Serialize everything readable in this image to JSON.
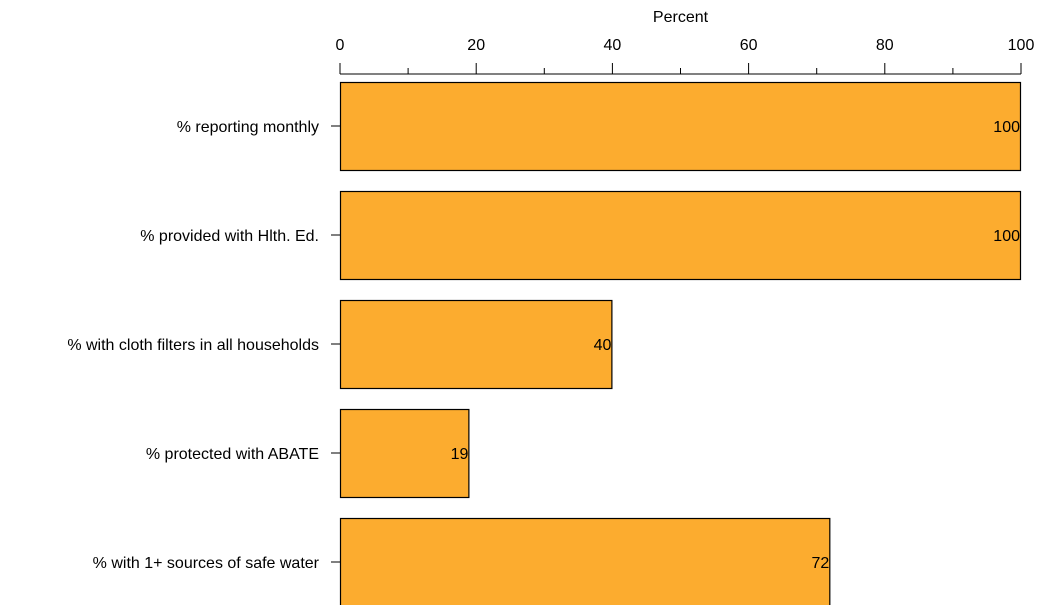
{
  "chart_data": {
    "type": "bar",
    "orientation": "horizontal",
    "categories": [
      "% reporting monthly",
      "% provided with Hlth. Ed.",
      "% with cloth filters in all households",
      "% protected with ABATE",
      "% with 1+ sources of safe water"
    ],
    "values": [
      100,
      100,
      40,
      19,
      72
    ],
    "data_labels": [
      "100",
      "100",
      "40",
      "19",
      "72"
    ],
    "title": "",
    "xlabel": "Percent",
    "ylabel": "",
    "xlim": [
      0,
      100
    ],
    "x_ticks": [
      0,
      20,
      40,
      60,
      80,
      100
    ],
    "x_tick_labels": [
      "0",
      "20",
      "40",
      "60",
      "80",
      "100"
    ],
    "x_minor_ticks": [
      10,
      30,
      50,
      70,
      90
    ],
    "axis_position": "top",
    "grid": false,
    "bar_color": "#FCAC2F",
    "bar_edge_color": "#000000"
  }
}
